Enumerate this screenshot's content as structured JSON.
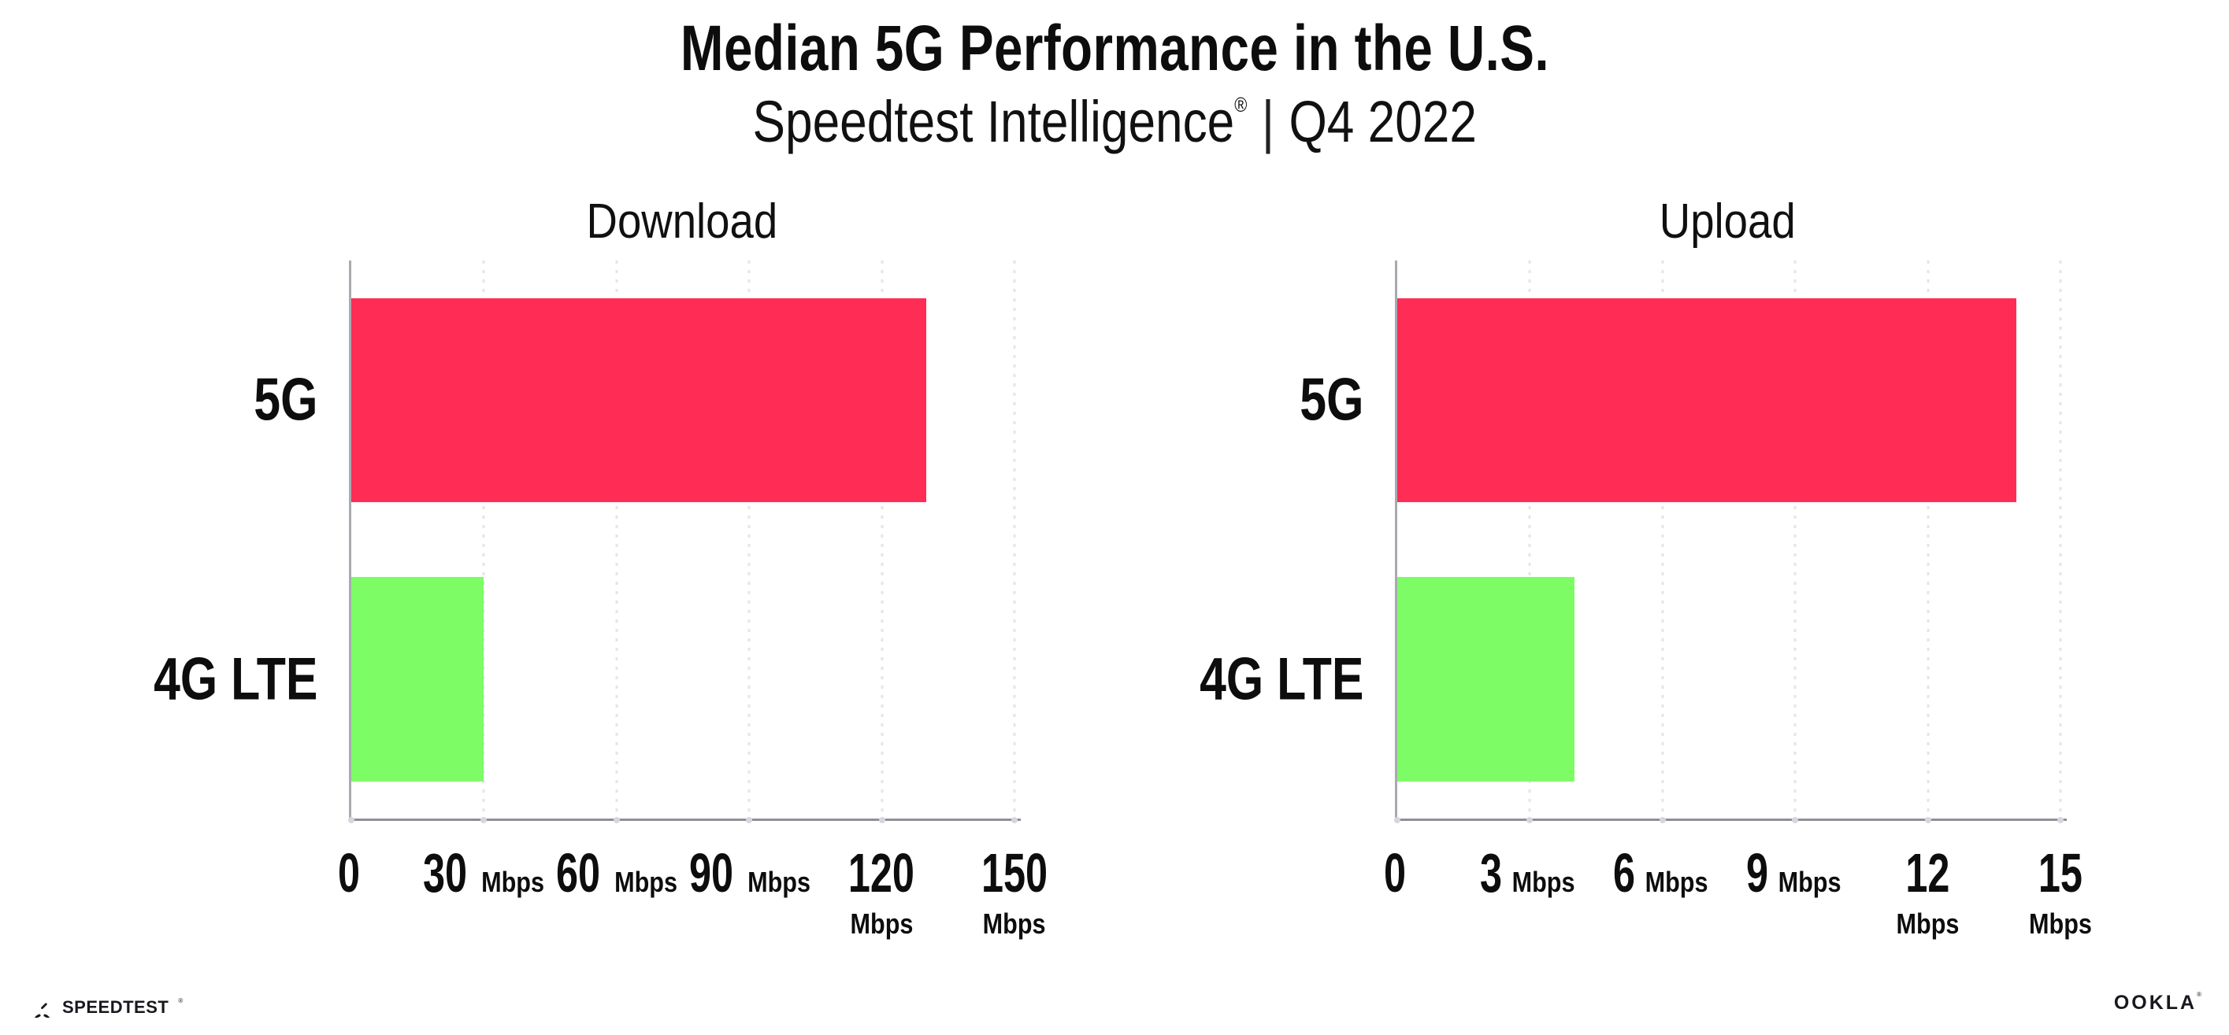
{
  "header": {
    "title": "Median 5G Performance in the U.S.",
    "subtitle_brand": "Speedtest Intelligence",
    "subtitle_mark": "®",
    "subtitle_divider": "|",
    "subtitle_period": "Q4 2022"
  },
  "colors": {
    "text": "#0d0d0d",
    "bar_5g": "#ff2d55",
    "bar_4g_lte": "#7dfc66",
    "axis_line": "#8f8f98",
    "y_axis_line": "#a9a9b0",
    "gridline": "#e4e4ee",
    "tick_dot": "#d6d6e2"
  },
  "chart_data": [
    {
      "type": "bar",
      "orientation": "horizontal",
      "title": "Download",
      "categories": [
        "5G",
        "4G LTE"
      ],
      "values": [
        130,
        30
      ],
      "unit": "Mbps",
      "xlim": [
        0,
        150
      ],
      "xticks": [
        0,
        30,
        60,
        90,
        120,
        150
      ],
      "bar_colors": [
        "#ff2d55",
        "#7dfc66"
      ],
      "grid": "vertical-dotted-at-ticks",
      "legend": "none",
      "tick_unit_shown_for": "all ticks except 0"
    },
    {
      "type": "bar",
      "orientation": "horizontal",
      "title": "Upload",
      "categories": [
        "5G",
        "4G LTE"
      ],
      "values": [
        14,
        4
      ],
      "unit": "Mbps",
      "xlim": [
        0,
        15
      ],
      "xticks": [
        0,
        3,
        6,
        9,
        12,
        15
      ],
      "bar_colors": [
        "#ff2d55",
        "#7dfc66"
      ],
      "grid": "vertical-dotted-at-ticks",
      "legend": "none",
      "tick_unit_shown_for": "all ticks except 0"
    }
  ],
  "footer": {
    "speedtest_label": "SPEEDTEST",
    "speedtest_mark": "®",
    "ookla_label": "OOKLA",
    "ookla_mark": "®"
  }
}
